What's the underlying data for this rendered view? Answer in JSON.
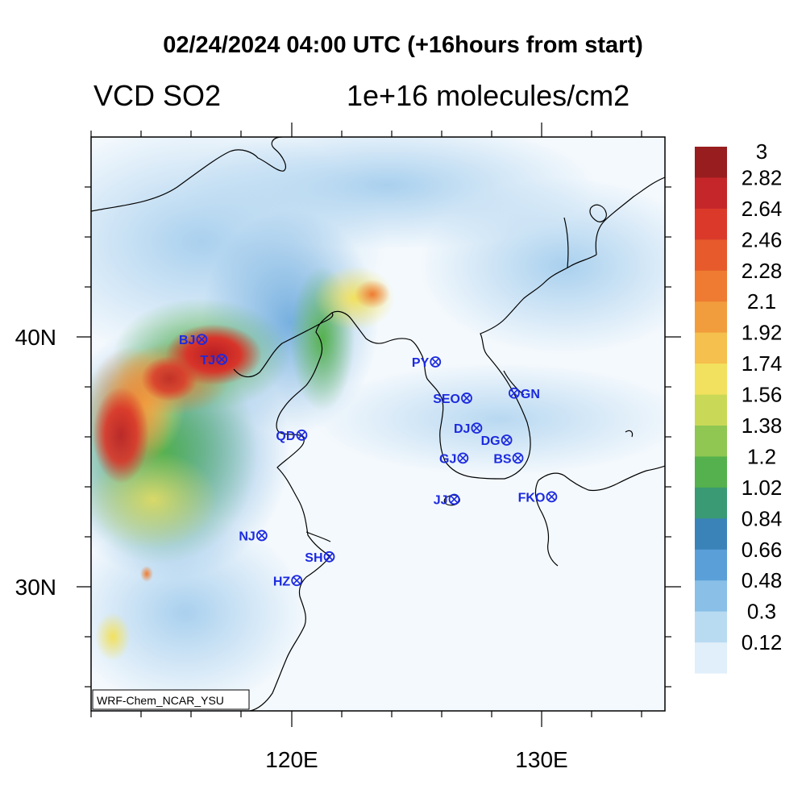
{
  "title": "02/24/2024 04:00 UTC (+16hours from start)",
  "variable": "VCD SO2",
  "units": "1e+16 molecules/cm2",
  "model_label": "WRF-Chem_NCAR_YSU",
  "axes": {
    "lon_labels": [
      {
        "label": "120E",
        "lon": 120
      },
      {
        "label": "130E",
        "lon": 130
      }
    ],
    "lat_labels": [
      {
        "label": "40N",
        "lat": 40
      },
      {
        "label": "30N",
        "lat": 30
      }
    ]
  },
  "colorbar": {
    "labels": [
      "3",
      "2.82",
      "2.64",
      "2.46",
      "2.28",
      "2.1",
      "1.92",
      "1.74",
      "1.56",
      "1.38",
      "1.2",
      "1.02",
      "0.84",
      "0.66",
      "0.48",
      "0.3",
      "0.12"
    ],
    "colors": [
      "#981d1f",
      "#c5262a",
      "#db3a2b",
      "#e65a2c",
      "#ee7b31",
      "#f29d3d",
      "#f5c04d",
      "#f2e15e",
      "#c9d957",
      "#8fc752",
      "#55b14d",
      "#3a9a73",
      "#3a83b9",
      "#5a9fd8",
      "#8ac0e8",
      "#b9dbf2",
      "#e0eff9",
      "#ffffff"
    ]
  },
  "cities": [
    {
      "label": "BJ",
      "lon": 116.4,
      "lat": 39.9
    },
    {
      "label": "TJ",
      "lon": 117.2,
      "lat": 39.1
    },
    {
      "label": "PY",
      "lon": 125.75,
      "lat": 39.0
    },
    {
      "label": "SEO",
      "lon": 127.0,
      "lat": 37.55
    },
    {
      "label": "GN",
      "lon": 128.9,
      "lat": 37.75
    },
    {
      "label": "DJ",
      "lon": 127.4,
      "lat": 36.35
    },
    {
      "label": "DG",
      "lon": 128.6,
      "lat": 35.87
    },
    {
      "label": "QD",
      "lon": 120.4,
      "lat": 36.07
    },
    {
      "label": "GJ",
      "lon": 126.85,
      "lat": 35.15
    },
    {
      "label": "BS",
      "lon": 129.05,
      "lat": 35.15
    },
    {
      "label": "JJ",
      "lon": 126.5,
      "lat": 33.5
    },
    {
      "label": "FKO",
      "lon": 130.4,
      "lat": 33.6
    },
    {
      "label": "NJ",
      "lon": 118.8,
      "lat": 32.05
    },
    {
      "label": "SH",
      "lon": 121.5,
      "lat": 31.2
    },
    {
      "label": "HZ",
      "lon": 120.2,
      "lat": 30.25
    }
  ]
}
